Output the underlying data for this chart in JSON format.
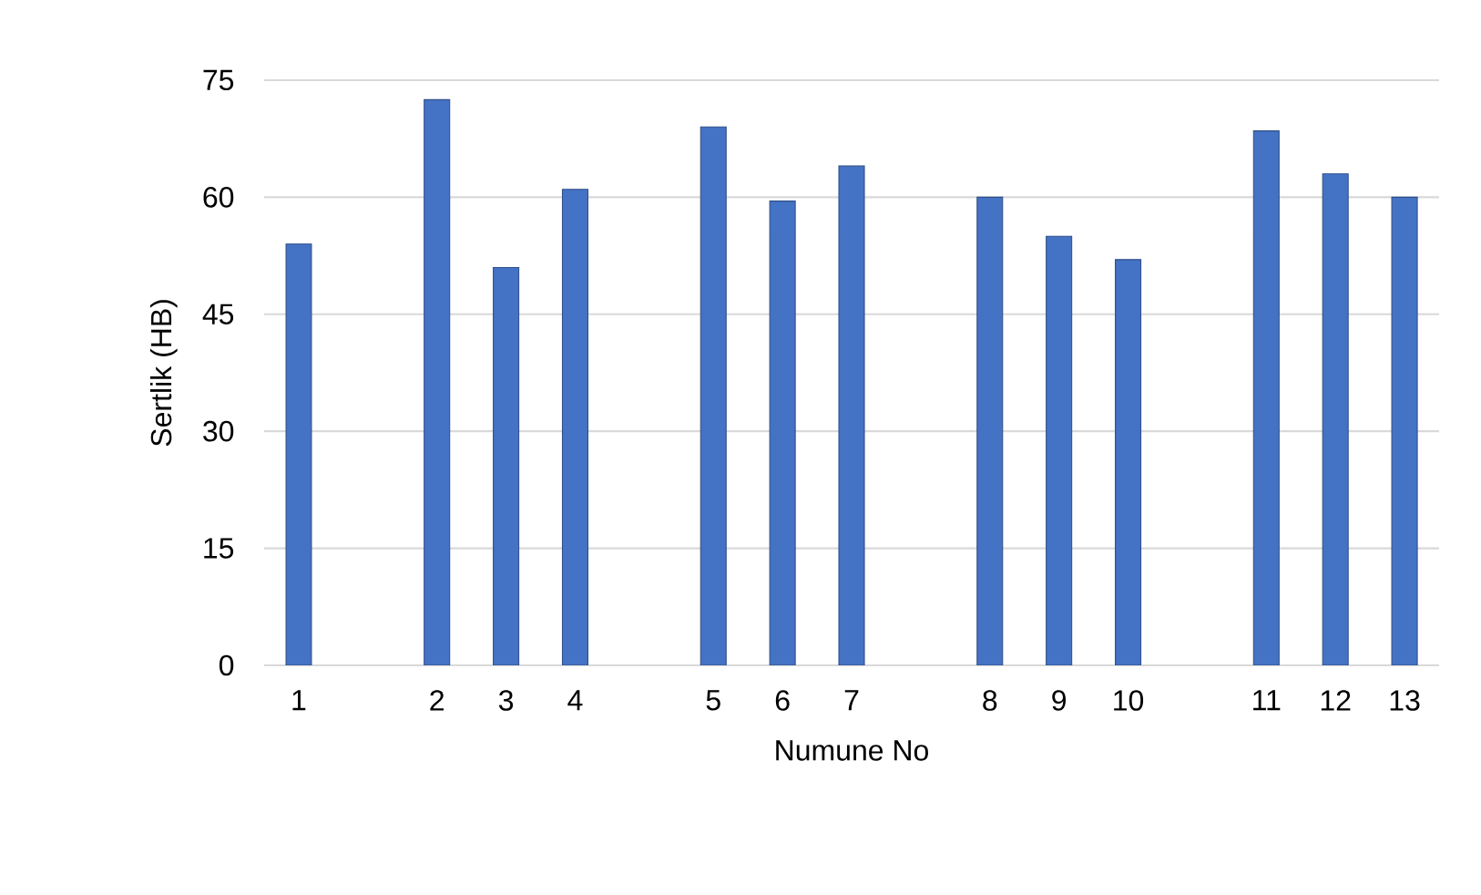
{
  "chart_data": {
    "type": "bar",
    "xlabel": "Numune No",
    "ylabel": "Sertlik (HB)",
    "categories": [
      "1",
      null,
      "2",
      "3",
      "4",
      null,
      "5",
      "6",
      "7",
      null,
      "8",
      "9",
      "10",
      null,
      "11",
      "12",
      "13"
    ],
    "values": [
      54,
      null,
      72.5,
      51,
      61,
      null,
      69,
      59.5,
      64,
      null,
      60,
      55,
      52,
      null,
      68.5,
      63,
      60
    ],
    "color": "#4472c4",
    "ylim": [
      0,
      75
    ],
    "yticks": [
      0,
      15,
      30,
      45,
      60,
      75
    ],
    "grid": "y"
  }
}
